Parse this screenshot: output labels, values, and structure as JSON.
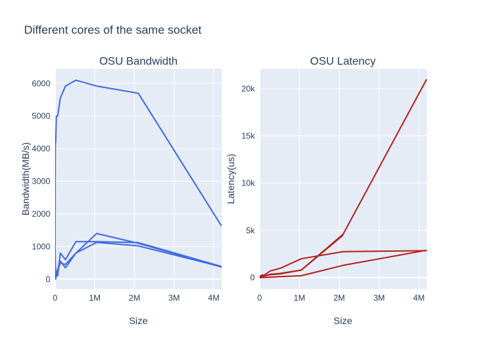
{
  "figure": {
    "title": "Different cores of the same socket"
  },
  "chart_data": [
    {
      "type": "line",
      "title": "OSU Bandwidth",
      "xlabel": "Size",
      "ylabel": "Bandwidth(MB/s)",
      "xlim": [
        0,
        4200000
      ],
      "ylim": [
        -300,
        6450
      ],
      "x_ticks": [
        {
          "v": 0,
          "label": "0"
        },
        {
          "v": 1000000,
          "label": "1M"
        },
        {
          "v": 2000000,
          "label": "2M"
        },
        {
          "v": 3000000,
          "label": "3M"
        },
        {
          "v": 4000000,
          "label": "4M"
        }
      ],
      "y_ticks": [
        {
          "v": 0,
          "label": "0"
        },
        {
          "v": 1000,
          "label": "1000"
        },
        {
          "v": 2000,
          "label": "2000"
        },
        {
          "v": 3000,
          "label": "3000"
        },
        {
          "v": 4000,
          "label": "4000"
        },
        {
          "v": 5000,
          "label": "5000"
        },
        {
          "v": 6000,
          "label": "6000"
        }
      ],
      "grid": true,
      "color": "#4169e1",
      "series": [
        {
          "x": [
            1,
            1000,
            4000,
            8000,
            16000,
            32000,
            65536,
            131072,
            262144,
            524288,
            1048576,
            2097152,
            4194304
          ],
          "values": [
            0,
            2000,
            3700,
            4200,
            4200,
            5000,
            5000,
            5550,
            5920,
            6100,
            5920,
            5700,
            1630
          ]
        },
        {
          "x": [
            1,
            8000,
            16000,
            32000,
            65536,
            131072,
            262144,
            524288,
            1048576,
            2097152,
            4194304
          ],
          "values": [
            900,
            400,
            0,
            150,
            100,
            800,
            600,
            1150,
            1150,
            1120,
            390
          ]
        },
        {
          "x": [
            1,
            16000,
            32000,
            65536,
            131072,
            262144,
            524288,
            1048576,
            2097152,
            4194304
          ],
          "values": [
            600,
            200,
            100,
            300,
            550,
            350,
            800,
            1400,
            1100,
            370
          ]
        },
        {
          "x": [
            1,
            65536,
            131072,
            262144,
            524288,
            1048576,
            2097152,
            4194304
          ],
          "values": [
            200,
            250,
            500,
            450,
            800,
            1130,
            1020,
            380
          ]
        }
      ]
    },
    {
      "type": "line",
      "title": "OSU Latency",
      "xlabel": "Size",
      "ylabel": "Latency(us)",
      "xlim": [
        0,
        4200000
      ],
      "ylim": [
        -1200,
        22100
      ],
      "x_ticks": [
        {
          "v": 0,
          "label": "0"
        },
        {
          "v": 1000000,
          "label": "1M"
        },
        {
          "v": 2000000,
          "label": "2M"
        },
        {
          "v": 3000000,
          "label": "3M"
        },
        {
          "v": 4000000,
          "label": "4M"
        }
      ],
      "y_ticks": [
        {
          "v": 0,
          "label": "0"
        },
        {
          "v": 5000,
          "label": "5k"
        },
        {
          "v": 10000,
          "label": "10k"
        },
        {
          "v": 15000,
          "label": "15k"
        },
        {
          "v": 20000,
          "label": "20k"
        }
      ],
      "grid": true,
      "color": "#b22222",
      "series": [
        {
          "x": [
            1,
            65536,
            131072,
            262144,
            524288,
            1048576,
            2097152,
            4194304
          ],
          "values": [
            100,
            300,
            200,
            300,
            400,
            800,
            4600,
            21000
          ]
        },
        {
          "x": [
            1,
            65536,
            131072,
            262144,
            524288,
            1048576,
            2097152,
            4194304
          ],
          "values": [
            0,
            200,
            300,
            700,
            1000,
            2000,
            2750,
            2850
          ]
        },
        {
          "x": [
            1,
            131072,
            262144,
            524288,
            1048576,
            2097152,
            4194304
          ],
          "values": [
            0,
            20,
            50,
            100,
            200,
            1300,
            2900
          ]
        },
        {
          "x": [
            1,
            262144,
            524288,
            1048576,
            2097152
          ],
          "values": [
            0,
            350,
            450,
            800,
            4500
          ]
        }
      ]
    }
  ]
}
